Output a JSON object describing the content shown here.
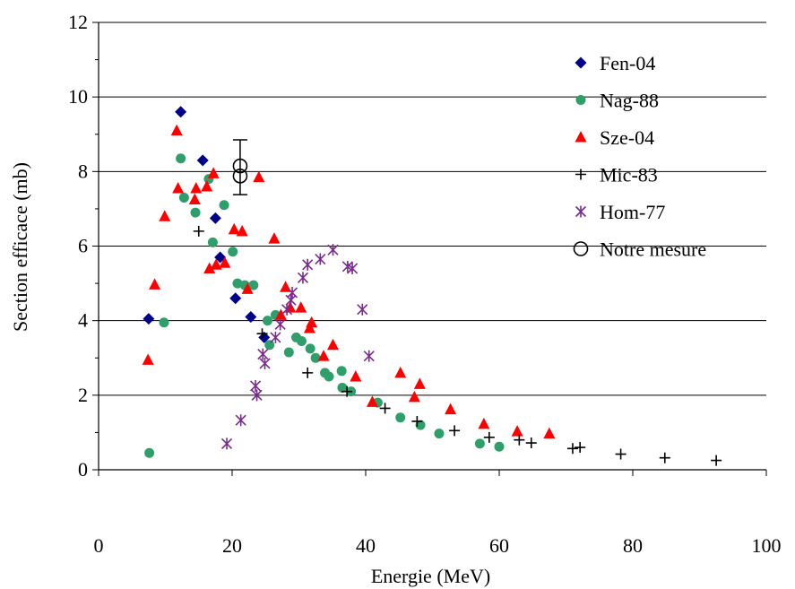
{
  "chart_data": {
    "type": "scatter",
    "title": "",
    "xlabel": "Energie (MeV)",
    "ylabel": "Section efficace (mb)",
    "xlim": [
      0,
      100
    ],
    "ylim": [
      0,
      12
    ],
    "xticks": [
      "0",
      "20",
      "40",
      "60",
      "80",
      "100"
    ],
    "yticks": [
      "0",
      "2",
      "4",
      "6",
      "8",
      "10",
      "12"
    ],
    "grid": "horizontal",
    "legend_position": "top-right",
    "series": [
      {
        "name": "Fen-04",
        "marker": "diamond",
        "color": "#00008B",
        "points": [
          [
            7.5,
            4.05
          ],
          [
            12.3,
            9.6
          ],
          [
            15.6,
            8.3
          ],
          [
            17.5,
            6.75
          ],
          [
            18.2,
            5.7
          ],
          [
            20.5,
            4.6
          ],
          [
            22.8,
            4.1
          ],
          [
            24.8,
            3.55
          ]
        ]
      },
      {
        "name": "Nag-88",
        "marker": "circle",
        "color": "#2E9E6B",
        "points": [
          [
            7.6,
            0.45
          ],
          [
            9.8,
            3.95
          ],
          [
            12.3,
            8.35
          ],
          [
            12.8,
            7.3
          ],
          [
            14.5,
            6.9
          ],
          [
            16.5,
            7.8
          ],
          [
            17.1,
            6.1
          ],
          [
            18.8,
            7.1
          ],
          [
            20.1,
            5.85
          ],
          [
            20.8,
            5.0
          ],
          [
            21.9,
            4.95
          ],
          [
            23.2,
            4.95
          ],
          [
            25.3,
            4.0
          ],
          [
            25.6,
            3.35
          ],
          [
            26.5,
            4.15
          ],
          [
            28.5,
            3.15
          ],
          [
            29.6,
            3.55
          ],
          [
            30.4,
            3.45
          ],
          [
            31.7,
            3.25
          ],
          [
            32.5,
            3.0
          ],
          [
            33.9,
            2.6
          ],
          [
            34.5,
            2.5
          ],
          [
            36.4,
            2.65
          ],
          [
            36.5,
            2.2
          ],
          [
            37.8,
            2.1
          ],
          [
            41.8,
            1.8
          ],
          [
            45.2,
            1.4
          ],
          [
            48.2,
            1.2
          ],
          [
            51.0,
            0.97
          ],
          [
            57.1,
            0.7
          ],
          [
            60.0,
            0.62
          ]
        ]
      },
      {
        "name": "Sze-04",
        "marker": "triangle",
        "color": "#FF0000",
        "points": [
          [
            7.4,
            2.95
          ],
          [
            8.4,
            4.97
          ],
          [
            9.9,
            6.8
          ],
          [
            11.7,
            9.1
          ],
          [
            11.9,
            7.55
          ],
          [
            14.4,
            7.25
          ],
          [
            14.6,
            7.55
          ],
          [
            16.2,
            7.6
          ],
          [
            16.6,
            5.4
          ],
          [
            17.2,
            7.95
          ],
          [
            17.6,
            5.5
          ],
          [
            18.9,
            5.55
          ],
          [
            20.3,
            6.45
          ],
          [
            21.5,
            6.4
          ],
          [
            22.3,
            4.85
          ],
          [
            24.0,
            7.85
          ],
          [
            26.3,
            6.2
          ],
          [
            27.3,
            4.15
          ],
          [
            28.0,
            4.9
          ],
          [
            28.7,
            4.35
          ],
          [
            30.3,
            4.35
          ],
          [
            31.6,
            3.8
          ],
          [
            31.9,
            3.95
          ],
          [
            33.7,
            3.05
          ],
          [
            35.1,
            3.35
          ],
          [
            38.5,
            2.5
          ],
          [
            41.0,
            1.82
          ],
          [
            45.2,
            2.6
          ],
          [
            47.3,
            1.95
          ],
          [
            48.1,
            2.3
          ],
          [
            52.7,
            1.62
          ],
          [
            57.7,
            1.23
          ],
          [
            62.7,
            1.03
          ],
          [
            67.5,
            0.97
          ]
        ]
      },
      {
        "name": "Mic-83",
        "marker": "plus",
        "color": "#000000",
        "points": [
          [
            15.0,
            6.4
          ],
          [
            24.5,
            3.65
          ],
          [
            31.3,
            2.6
          ],
          [
            37.2,
            2.1
          ],
          [
            42.9,
            1.65
          ],
          [
            47.7,
            1.3
          ],
          [
            53.3,
            1.05
          ],
          [
            58.5,
            0.87
          ],
          [
            63.0,
            0.8
          ],
          [
            64.8,
            0.72
          ],
          [
            71.0,
            0.57
          ],
          [
            72.1,
            0.6
          ],
          [
            78.2,
            0.42
          ],
          [
            84.8,
            0.32
          ],
          [
            92.5,
            0.25
          ]
        ]
      },
      {
        "name": "Hom-77",
        "marker": "asterisk",
        "color": "#7B2A8E",
        "points": [
          [
            19.2,
            0.7
          ],
          [
            21.3,
            1.33
          ],
          [
            23.5,
            2.25
          ],
          [
            23.7,
            2.0
          ],
          [
            24.6,
            3.1
          ],
          [
            24.9,
            2.85
          ],
          [
            26.5,
            3.55
          ],
          [
            27.2,
            3.9
          ],
          [
            28.2,
            4.3
          ],
          [
            28.8,
            4.55
          ],
          [
            29.0,
            4.75
          ],
          [
            30.6,
            5.15
          ],
          [
            31.3,
            5.5
          ],
          [
            33.2,
            5.65
          ],
          [
            35.1,
            5.9
          ],
          [
            37.3,
            5.45
          ],
          [
            38.0,
            5.4
          ],
          [
            39.5,
            4.3
          ],
          [
            40.5,
            3.05
          ]
        ]
      },
      {
        "name": "Notre mesure",
        "marker": "open-circle",
        "color": "#000000",
        "points": [
          [
            21.2,
            8.15
          ],
          [
            21.2,
            7.88
          ]
        ],
        "error": [
          0.7,
          0.5
        ]
      }
    ]
  }
}
